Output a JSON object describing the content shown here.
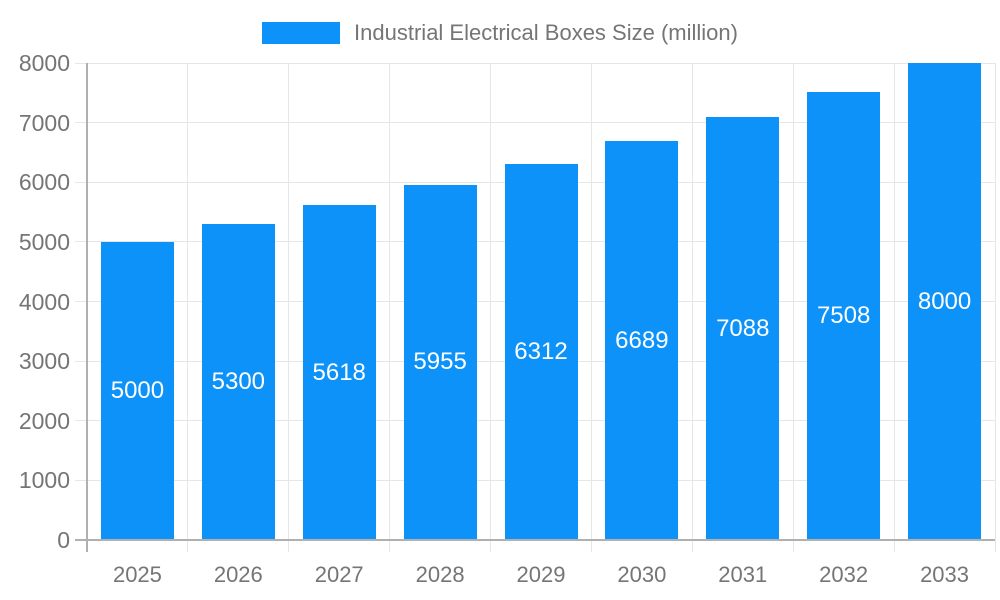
{
  "chart_data": {
    "type": "bar",
    "title": "",
    "legend_label": "Industrial Electrical Boxes Size (million)",
    "legend_position": "top-center",
    "categories": [
      "2025",
      "2026",
      "2027",
      "2028",
      "2029",
      "2030",
      "2031",
      "2032",
      "2033"
    ],
    "values": [
      5000,
      5300,
      5618,
      5955,
      6312,
      6689,
      7088,
      7508,
      8000
    ],
    "bar_value_labels": [
      "5000",
      "5300",
      "5618",
      "5955",
      "6312",
      "6689",
      "7088",
      "7508",
      "8000"
    ],
    "xlabel": "",
    "ylabel": "",
    "ylim": [
      0,
      8000
    ],
    "yticks": [
      0,
      1000,
      2000,
      3000,
      4000,
      5000,
      6000,
      7000,
      8000
    ],
    "grid": "on",
    "colors": {
      "bar": "#0d92fa",
      "annotation_text": "#ffffff",
      "grid_line": "#e6e6e6",
      "axis_line": "#b0b0b0",
      "axis_text": "#757575",
      "legend_text": "#757575",
      "background": "#ffffff"
    }
  }
}
